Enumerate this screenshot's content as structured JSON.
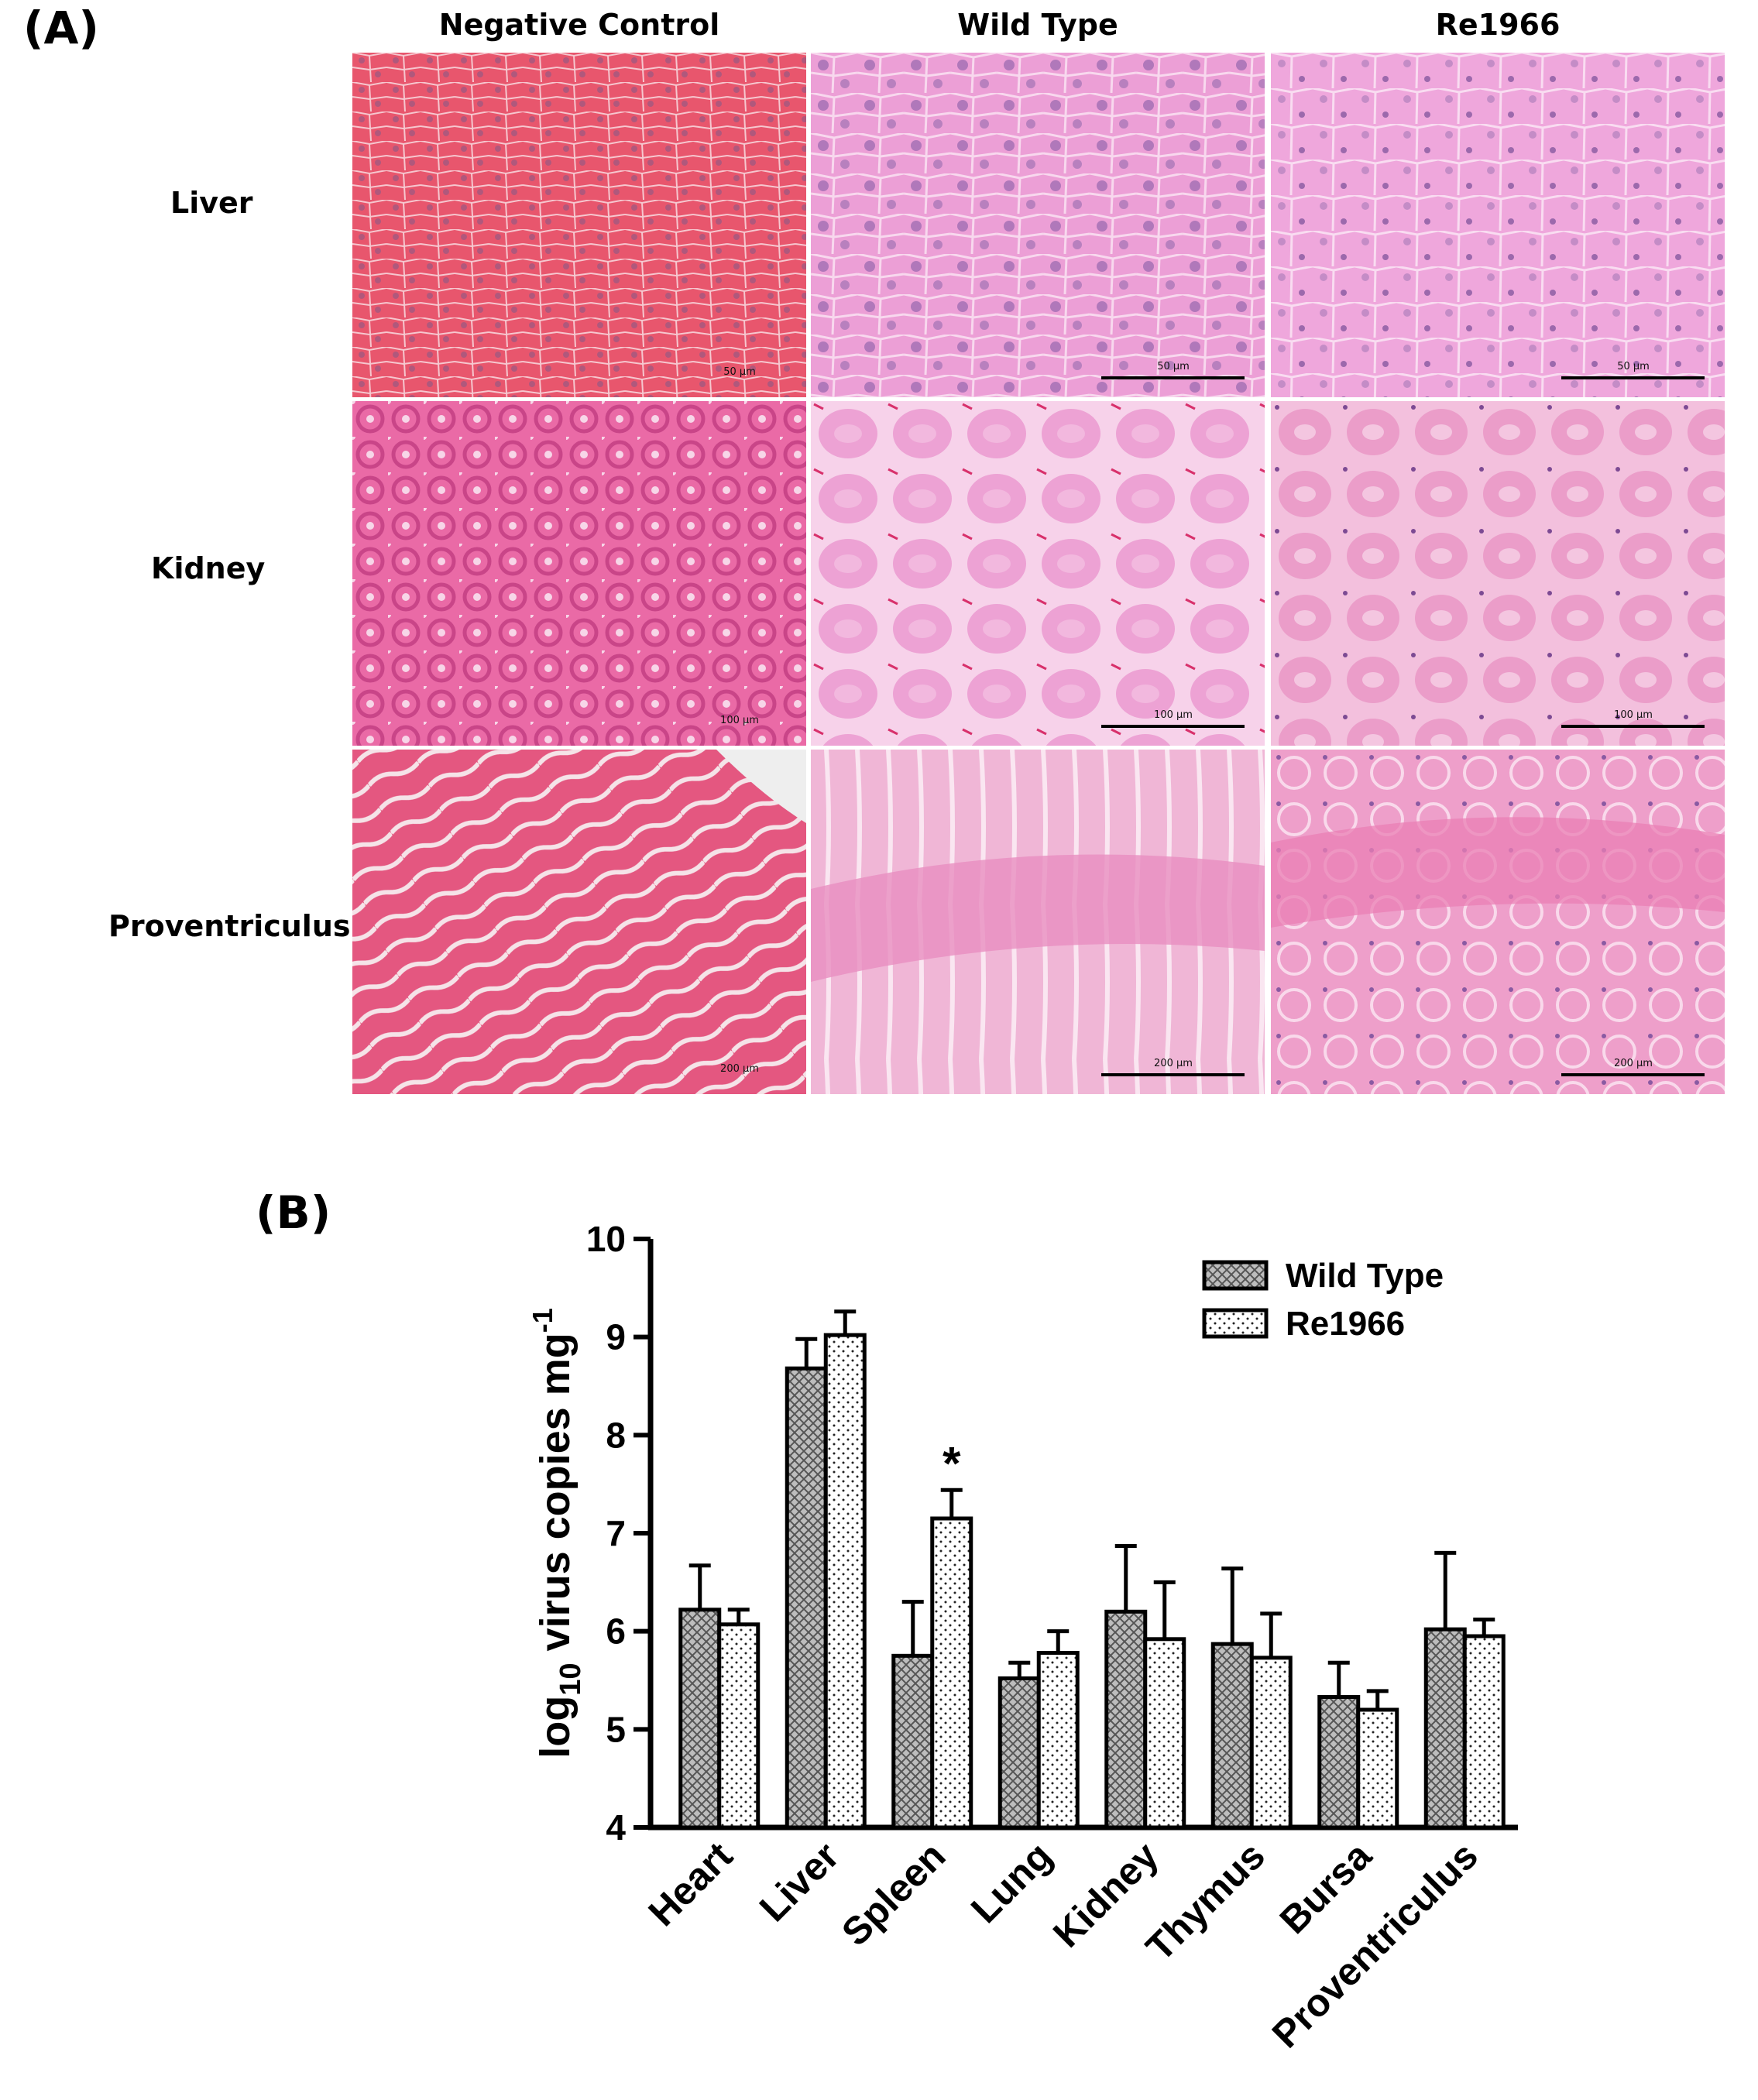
{
  "panel_a": {
    "label": "(A)",
    "columns": [
      "Negative Control",
      "Wild Type",
      "Re1966"
    ],
    "rows": [
      {
        "name": "Liver",
        "scale": "50 µm"
      },
      {
        "name": "Kidney",
        "scale": "100 µm"
      },
      {
        "name": "Proventriculus",
        "scale": "200 µm"
      }
    ]
  },
  "panel_b": {
    "label": "(B)",
    "significance_marker": "*"
  },
  "chart_data": {
    "type": "bar",
    "categories": [
      "Heart",
      "Liver",
      "Spleen",
      "Lung",
      "Kidney",
      "Thymus",
      "Bursa",
      "Proventriculus"
    ],
    "series": [
      {
        "name": "Wild Type",
        "values": [
          6.22,
          8.68,
          5.75,
          5.52,
          6.2,
          5.87,
          5.33,
          6.02
        ],
        "errors": [
          0.45,
          0.3,
          0.55,
          0.16,
          0.67,
          0.77,
          0.35,
          0.78
        ],
        "pattern": "crosshatch"
      },
      {
        "name": "Re1966",
        "values": [
          6.07,
          9.02,
          7.15,
          5.78,
          5.92,
          5.73,
          5.2,
          5.95
        ],
        "errors": [
          0.15,
          0.24,
          0.29,
          0.22,
          0.58,
          0.45,
          0.19,
          0.17
        ],
        "pattern": "dots"
      }
    ],
    "ylabel": "log10 virus copies mg-1",
    "ylabel_parts": {
      "base": "log",
      "sub": "10",
      "rest": " virus copies mg",
      "sup": "-1"
    },
    "yticks": [
      4,
      5,
      6,
      7,
      8,
      9,
      10
    ],
    "ylim": [
      4,
      10
    ],
    "significant": [
      {
        "category": "Spleen",
        "series": "Re1966",
        "mark": "*"
      }
    ],
    "legend_position": "top-right"
  }
}
